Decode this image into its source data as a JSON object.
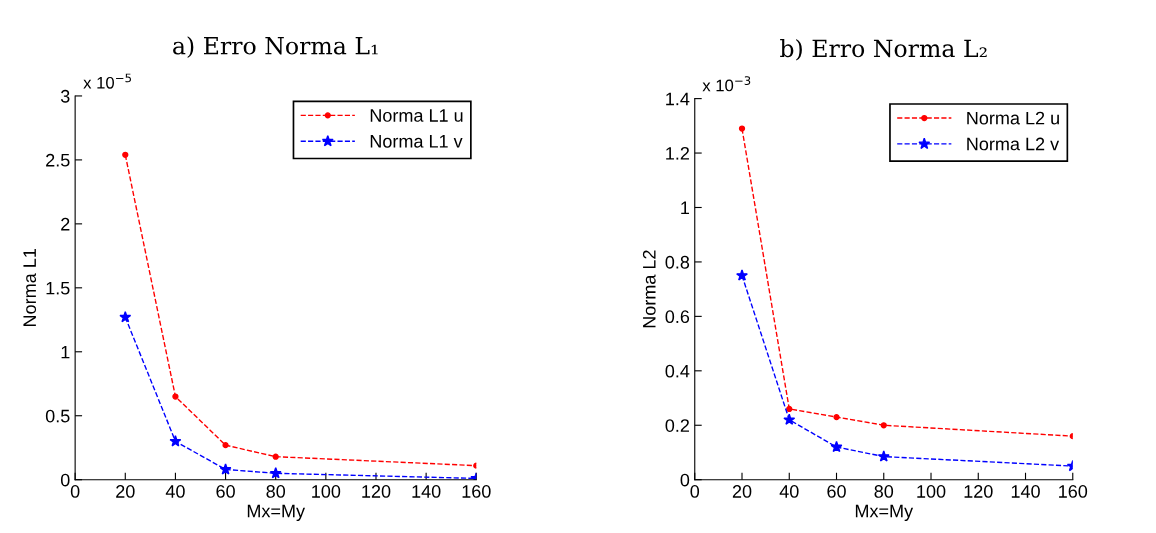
{
  "chart_data": [
    {
      "type": "line",
      "title": "a) Erro Norma L₁",
      "xlabel": "Mx=My",
      "ylabel": "Norma L1",
      "annotations": [
        "x 10$^{−5}$"
      ],
      "x": [
        20,
        40,
        60,
        80,
        160
      ],
      "series": [
        {
          "name": "Norma L1 u",
          "color": "#ff0000",
          "marker": "circle",
          "values": [
            2.54,
            0.65,
            0.27,
            0.18,
            0.11
          ]
        },
        {
          "name": "Norma L1 v",
          "color": "#0000ff",
          "marker": "star",
          "values": [
            1.27,
            0.3,
            0.08,
            0.05,
            0.01
          ]
        }
      ],
      "xlim": [
        0,
        160
      ],
      "xticks": [
        0,
        20,
        40,
        60,
        80,
        100,
        120,
        140,
        160
      ],
      "ylim": [
        0,
        3
      ],
      "yticks": [
        0,
        0.5,
        1,
        1.5,
        2,
        2.5,
        3
      ],
      "line_style": "dashed",
      "legend": "top right",
      "grid": false
    },
    {
      "type": "line",
      "title": "b) Erro Norma L₂",
      "xlabel": "Mx=My",
      "ylabel": "Norma L2",
      "annotations": [
        "x 10$^{−3}$"
      ],
      "x": [
        20,
        40,
        60,
        80,
        160
      ],
      "series": [
        {
          "name": "Norma L2 u",
          "color": "#ff0000",
          "marker": "circle",
          "values": [
            1.29,
            0.26,
            0.23,
            0.2,
            0.16
          ]
        },
        {
          "name": "Norma L2 v",
          "color": "#0000ff",
          "marker": "star",
          "values": [
            0.75,
            0.22,
            0.12,
            0.085,
            0.05
          ]
        }
      ],
      "xlim": [
        0,
        160
      ],
      "xticks": [
        0,
        20,
        40,
        60,
        80,
        100,
        120,
        140,
        160
      ],
      "ylim": [
        0,
        1.4
      ],
      "yticks": [
        0,
        0.2,
        0.4,
        0.6,
        0.8,
        1,
        1.2,
        1.4
      ],
      "line_style": "dashed",
      "legend": "top right",
      "grid": false
    }
  ]
}
